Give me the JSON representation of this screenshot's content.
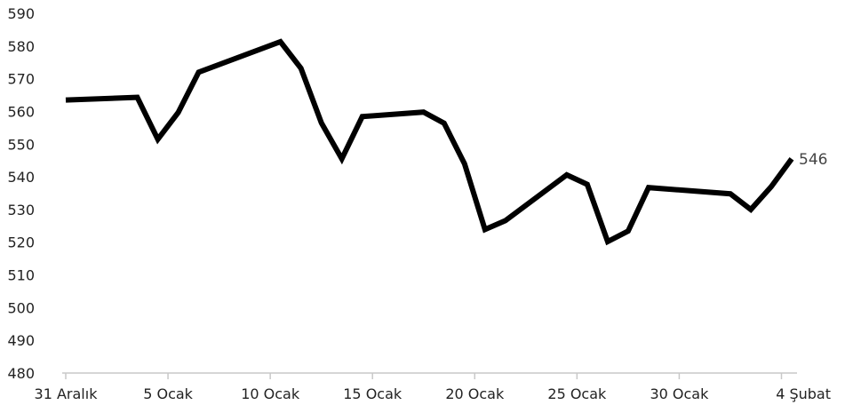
{
  "chart_data": {
    "type": "line",
    "title": "",
    "xlabel": "",
    "ylabel": "",
    "ylim": [
      480,
      590
    ],
    "yticks": [
      480,
      490,
      500,
      510,
      520,
      530,
      540,
      550,
      560,
      570,
      580,
      590
    ],
    "xticks": [
      {
        "day": 0,
        "label": "31 Aralık"
      },
      {
        "day": 5,
        "label": "5 Ocak"
      },
      {
        "day": 10,
        "label": "10 Ocak"
      },
      {
        "day": 15,
        "label": "15 Ocak"
      },
      {
        "day": 20,
        "label": "20 Ocak"
      },
      {
        "day": 25,
        "label": "25 Ocak"
      },
      {
        "day": 30,
        "label": "30 Ocak"
      },
      {
        "day": 35,
        "label": "4 Şubat"
      }
    ],
    "grid": false,
    "legend": "none",
    "line_color": "#000000",
    "series": [
      {
        "points": [
          {
            "x": 0,
            "y": 563.5
          },
          {
            "x": 3.5,
            "y": 564.3
          },
          {
            "x": 4.5,
            "y": 551.5
          },
          {
            "x": 5.5,
            "y": 559.7
          },
          {
            "x": 6.5,
            "y": 572.0
          },
          {
            "x": 10.5,
            "y": 581.3
          },
          {
            "x": 11.5,
            "y": 573.2
          },
          {
            "x": 12.5,
            "y": 556.5
          },
          {
            "x": 13.5,
            "y": 545.5
          },
          {
            "x": 14.5,
            "y": 558.4
          },
          {
            "x": 17.5,
            "y": 559.8
          },
          {
            "x": 18.5,
            "y": 556.4
          },
          {
            "x": 19.5,
            "y": 544.0
          },
          {
            "x": 20.5,
            "y": 523.9
          },
          {
            "x": 21.5,
            "y": 526.6
          },
          {
            "x": 24.5,
            "y": 540.6
          },
          {
            "x": 25.5,
            "y": 537.7
          },
          {
            "x": 26.5,
            "y": 520.2
          },
          {
            "x": 27.5,
            "y": 523.4
          },
          {
            "x": 28.5,
            "y": 536.7
          },
          {
            "x": 32.5,
            "y": 534.8
          },
          {
            "x": 33.5,
            "y": 530.0
          },
          {
            "x": 34.5,
            "y": 537.0
          },
          {
            "x": 35.5,
            "y": 545.5
          }
        ],
        "end_label": "546"
      }
    ]
  }
}
